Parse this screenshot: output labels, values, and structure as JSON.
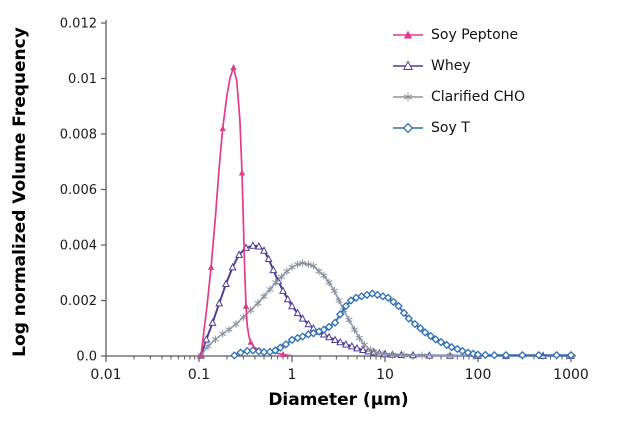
{
  "chart_data": {
    "type": "line",
    "title": "",
    "xlabel": "Diameter (µm)",
    "ylabel": "Log normalized Volume Frequency",
    "x_scale": "log",
    "x_range": [
      0.01,
      1000
    ],
    "y_range": [
      0,
      0.012
    ],
    "grid": false,
    "legend_position": "top-right",
    "x_tick_values": [
      0.01,
      0.1,
      1,
      10,
      100,
      1000
    ],
    "x_tick_labels": [
      "0.01",
      "0.1",
      "1",
      "10",
      "100",
      "1000"
    ],
    "y_tick_values": [
      0,
      0.002,
      0.004,
      0.006,
      0.008,
      0.01,
      0.012
    ],
    "y_tick_labels": [
      "0.0",
      "0.002",
      "0.004",
      "0.006",
      "0.008",
      "0.01",
      "0.012"
    ],
    "axis_color": "#5a5a5c",
    "draw_order": [
      1,
      2,
      0,
      3
    ],
    "series": [
      {
        "name": "Soy Peptone",
        "color": "#e23a8c",
        "marker_color": "#e23a8c",
        "marker": "triangle",
        "marker_fill": "solid",
        "marker_every": 3,
        "line_width": 1.7,
        "points": [
          [
            0.105,
            2e-05
          ],
          [
            0.112,
            0.0008
          ],
          [
            0.122,
            0.0018
          ],
          [
            0.135,
            0.0032
          ],
          [
            0.15,
            0.005
          ],
          [
            0.165,
            0.0068
          ],
          [
            0.18,
            0.0082
          ],
          [
            0.2,
            0.0094
          ],
          [
            0.215,
            0.01
          ],
          [
            0.235,
            0.0104
          ],
          [
            0.255,
            0.0099
          ],
          [
            0.275,
            0.0085
          ],
          [
            0.29,
            0.0066
          ],
          [
            0.3,
            0.0048
          ],
          [
            0.31,
            0.0031
          ],
          [
            0.32,
            0.0018
          ],
          [
            0.33,
            0.0011
          ],
          [
            0.345,
            0.0007
          ],
          [
            0.36,
            0.0005
          ],
          [
            0.39,
            0.00032
          ],
          [
            0.43,
            0.00024
          ],
          [
            0.5,
            0.00018
          ],
          [
            0.58,
            0.00014
          ],
          [
            0.68,
            0.0001
          ],
          [
            0.8,
            6e-05
          ],
          [
            0.9,
            3e-05
          ],
          [
            1.0,
            1e-05
          ]
        ]
      },
      {
        "name": "Whey",
        "color": "#4f3e96",
        "marker_color": "#4f3e96",
        "marker": "triangle",
        "marker_fill": "open",
        "marker_every": 1,
        "line_width": 2,
        "points": [
          [
            0.105,
            2e-05
          ],
          [
            0.12,
            0.0006
          ],
          [
            0.14,
            0.0012
          ],
          [
            0.165,
            0.0019
          ],
          [
            0.195,
            0.0026
          ],
          [
            0.23,
            0.0032
          ],
          [
            0.27,
            0.00365
          ],
          [
            0.32,
            0.0039
          ],
          [
            0.38,
            0.00398
          ],
          [
            0.44,
            0.00395
          ],
          [
            0.5,
            0.0038
          ],
          [
            0.56,
            0.0035
          ],
          [
            0.63,
            0.0031
          ],
          [
            0.71,
            0.0027
          ],
          [
            0.8,
            0.00235
          ],
          [
            0.9,
            0.00205
          ],
          [
            1.0,
            0.0018
          ],
          [
            1.15,
            0.00155
          ],
          [
            1.3,
            0.00135
          ],
          [
            1.5,
            0.00115
          ],
          [
            1.7,
            0.001
          ],
          [
            1.95,
            0.00088
          ],
          [
            2.2,
            0.00078
          ],
          [
            2.5,
            0.00068
          ],
          [
            2.9,
            0.00058
          ],
          [
            3.3,
            0.0005
          ],
          [
            3.8,
            0.00042
          ],
          [
            4.4,
            0.00035
          ],
          [
            5.0,
            0.00028
          ],
          [
            5.8,
            0.00022
          ],
          [
            6.6,
            0.00017
          ],
          [
            7.6,
            0.00013
          ],
          [
            8.7,
            0.0001
          ],
          [
            10,
            7e-05
          ],
          [
            12,
            5e-05
          ],
          [
            15,
            4e-05
          ],
          [
            20,
            3e-05
          ],
          [
            30,
            2e-05
          ],
          [
            50,
            1.5e-05
          ],
          [
            100,
            1e-05
          ],
          [
            200,
            1e-05
          ],
          [
            500,
            1e-05
          ],
          [
            1000,
            1e-05
          ]
        ]
      },
      {
        "name": "Clarified CHO",
        "color": "#7e9cbd",
        "marker_color": "#8d9096",
        "marker": "asterisk",
        "marker_fill": "open",
        "marker_every": 1,
        "line_width": 1.5,
        "points": [
          [
            0.105,
            2e-05
          ],
          [
            0.125,
            0.00035
          ],
          [
            0.15,
            0.0006
          ],
          [
            0.18,
            0.0008
          ],
          [
            0.21,
            0.00095
          ],
          [
            0.25,
            0.00115
          ],
          [
            0.3,
            0.0014
          ],
          [
            0.36,
            0.00165
          ],
          [
            0.43,
            0.0019
          ],
          [
            0.5,
            0.00215
          ],
          [
            0.58,
            0.0024
          ],
          [
            0.67,
            0.00265
          ],
          [
            0.77,
            0.00285
          ],
          [
            0.88,
            0.00305
          ],
          [
            1.0,
            0.0032
          ],
          [
            1.15,
            0.0033
          ],
          [
            1.3,
            0.00335
          ],
          [
            1.5,
            0.0033
          ],
          [
            1.7,
            0.00325
          ],
          [
            1.95,
            0.00305
          ],
          [
            2.2,
            0.0029
          ],
          [
            2.5,
            0.00265
          ],
          [
            2.85,
            0.00235
          ],
          [
            3.2,
            0.002
          ],
          [
            3.6,
            0.00165
          ],
          [
            4.1,
            0.0013
          ],
          [
            4.7,
            0.00095
          ],
          [
            5.3,
            0.00065
          ],
          [
            6.0,
            0.0004
          ],
          [
            7.0,
            0.00022
          ],
          [
            8.0,
            0.00012
          ],
          [
            9.5,
            7e-05
          ],
          [
            12,
            4e-05
          ],
          [
            16,
            3e-05
          ],
          [
            25,
            2e-05
          ],
          [
            50,
            1.5e-05
          ],
          [
            100,
            1e-05
          ],
          [
            300,
            1e-05
          ],
          [
            1000,
            1e-05
          ]
        ]
      },
      {
        "name": "Soy T",
        "color": "#2e6fb5",
        "marker_color": "#2e6fb5",
        "marker": "diamond",
        "marker_fill": "open",
        "marker_every": 1,
        "line_width": 1.8,
        "points": [
          [
            0.24,
            2e-05
          ],
          [
            0.28,
            0.00012
          ],
          [
            0.33,
            0.00018
          ],
          [
            0.38,
            0.0002
          ],
          [
            0.44,
            0.00017
          ],
          [
            0.5,
            0.00014
          ],
          [
            0.58,
            0.00015
          ],
          [
            0.66,
            0.0002
          ],
          [
            0.75,
            0.0003
          ],
          [
            0.86,
            0.00042
          ],
          [
            1.0,
            0.00058
          ],
          [
            1.15,
            0.00065
          ],
          [
            1.3,
            0.0007
          ],
          [
            1.5,
            0.00078
          ],
          [
            1.7,
            0.00082
          ],
          [
            1.95,
            0.00088
          ],
          [
            2.2,
            0.00095
          ],
          [
            2.5,
            0.00105
          ],
          [
            2.9,
            0.0012
          ],
          [
            3.3,
            0.0015
          ],
          [
            3.8,
            0.0018
          ],
          [
            4.3,
            0.002
          ],
          [
            4.9,
            0.0021
          ],
          [
            5.6,
            0.00215
          ],
          [
            6.4,
            0.0022
          ],
          [
            7.3,
            0.00225
          ],
          [
            8.3,
            0.0022
          ],
          [
            9.5,
            0.00215
          ],
          [
            10.8,
            0.0021
          ],
          [
            12.3,
            0.00195
          ],
          [
            14,
            0.0018
          ],
          [
            16,
            0.00155
          ],
          [
            18,
            0.00135
          ],
          [
            21,
            0.00115
          ],
          [
            24,
            0.001
          ],
          [
            27,
            0.00085
          ],
          [
            31,
            0.00072
          ],
          [
            35,
            0.0006
          ],
          [
            40,
            0.0005
          ],
          [
            46,
            0.0004
          ],
          [
            52,
            0.00032
          ],
          [
            60,
            0.00025
          ],
          [
            68,
            0.00018
          ],
          [
            78,
            0.00012
          ],
          [
            89,
            8e-05
          ],
          [
            100,
            5e-05
          ],
          [
            120,
            4e-05
          ],
          [
            150,
            3e-05
          ],
          [
            200,
            3e-05
          ],
          [
            300,
            3e-05
          ],
          [
            450,
            3e-05
          ],
          [
            700,
            3e-05
          ],
          [
            1000,
            3e-05
          ]
        ]
      }
    ]
  }
}
